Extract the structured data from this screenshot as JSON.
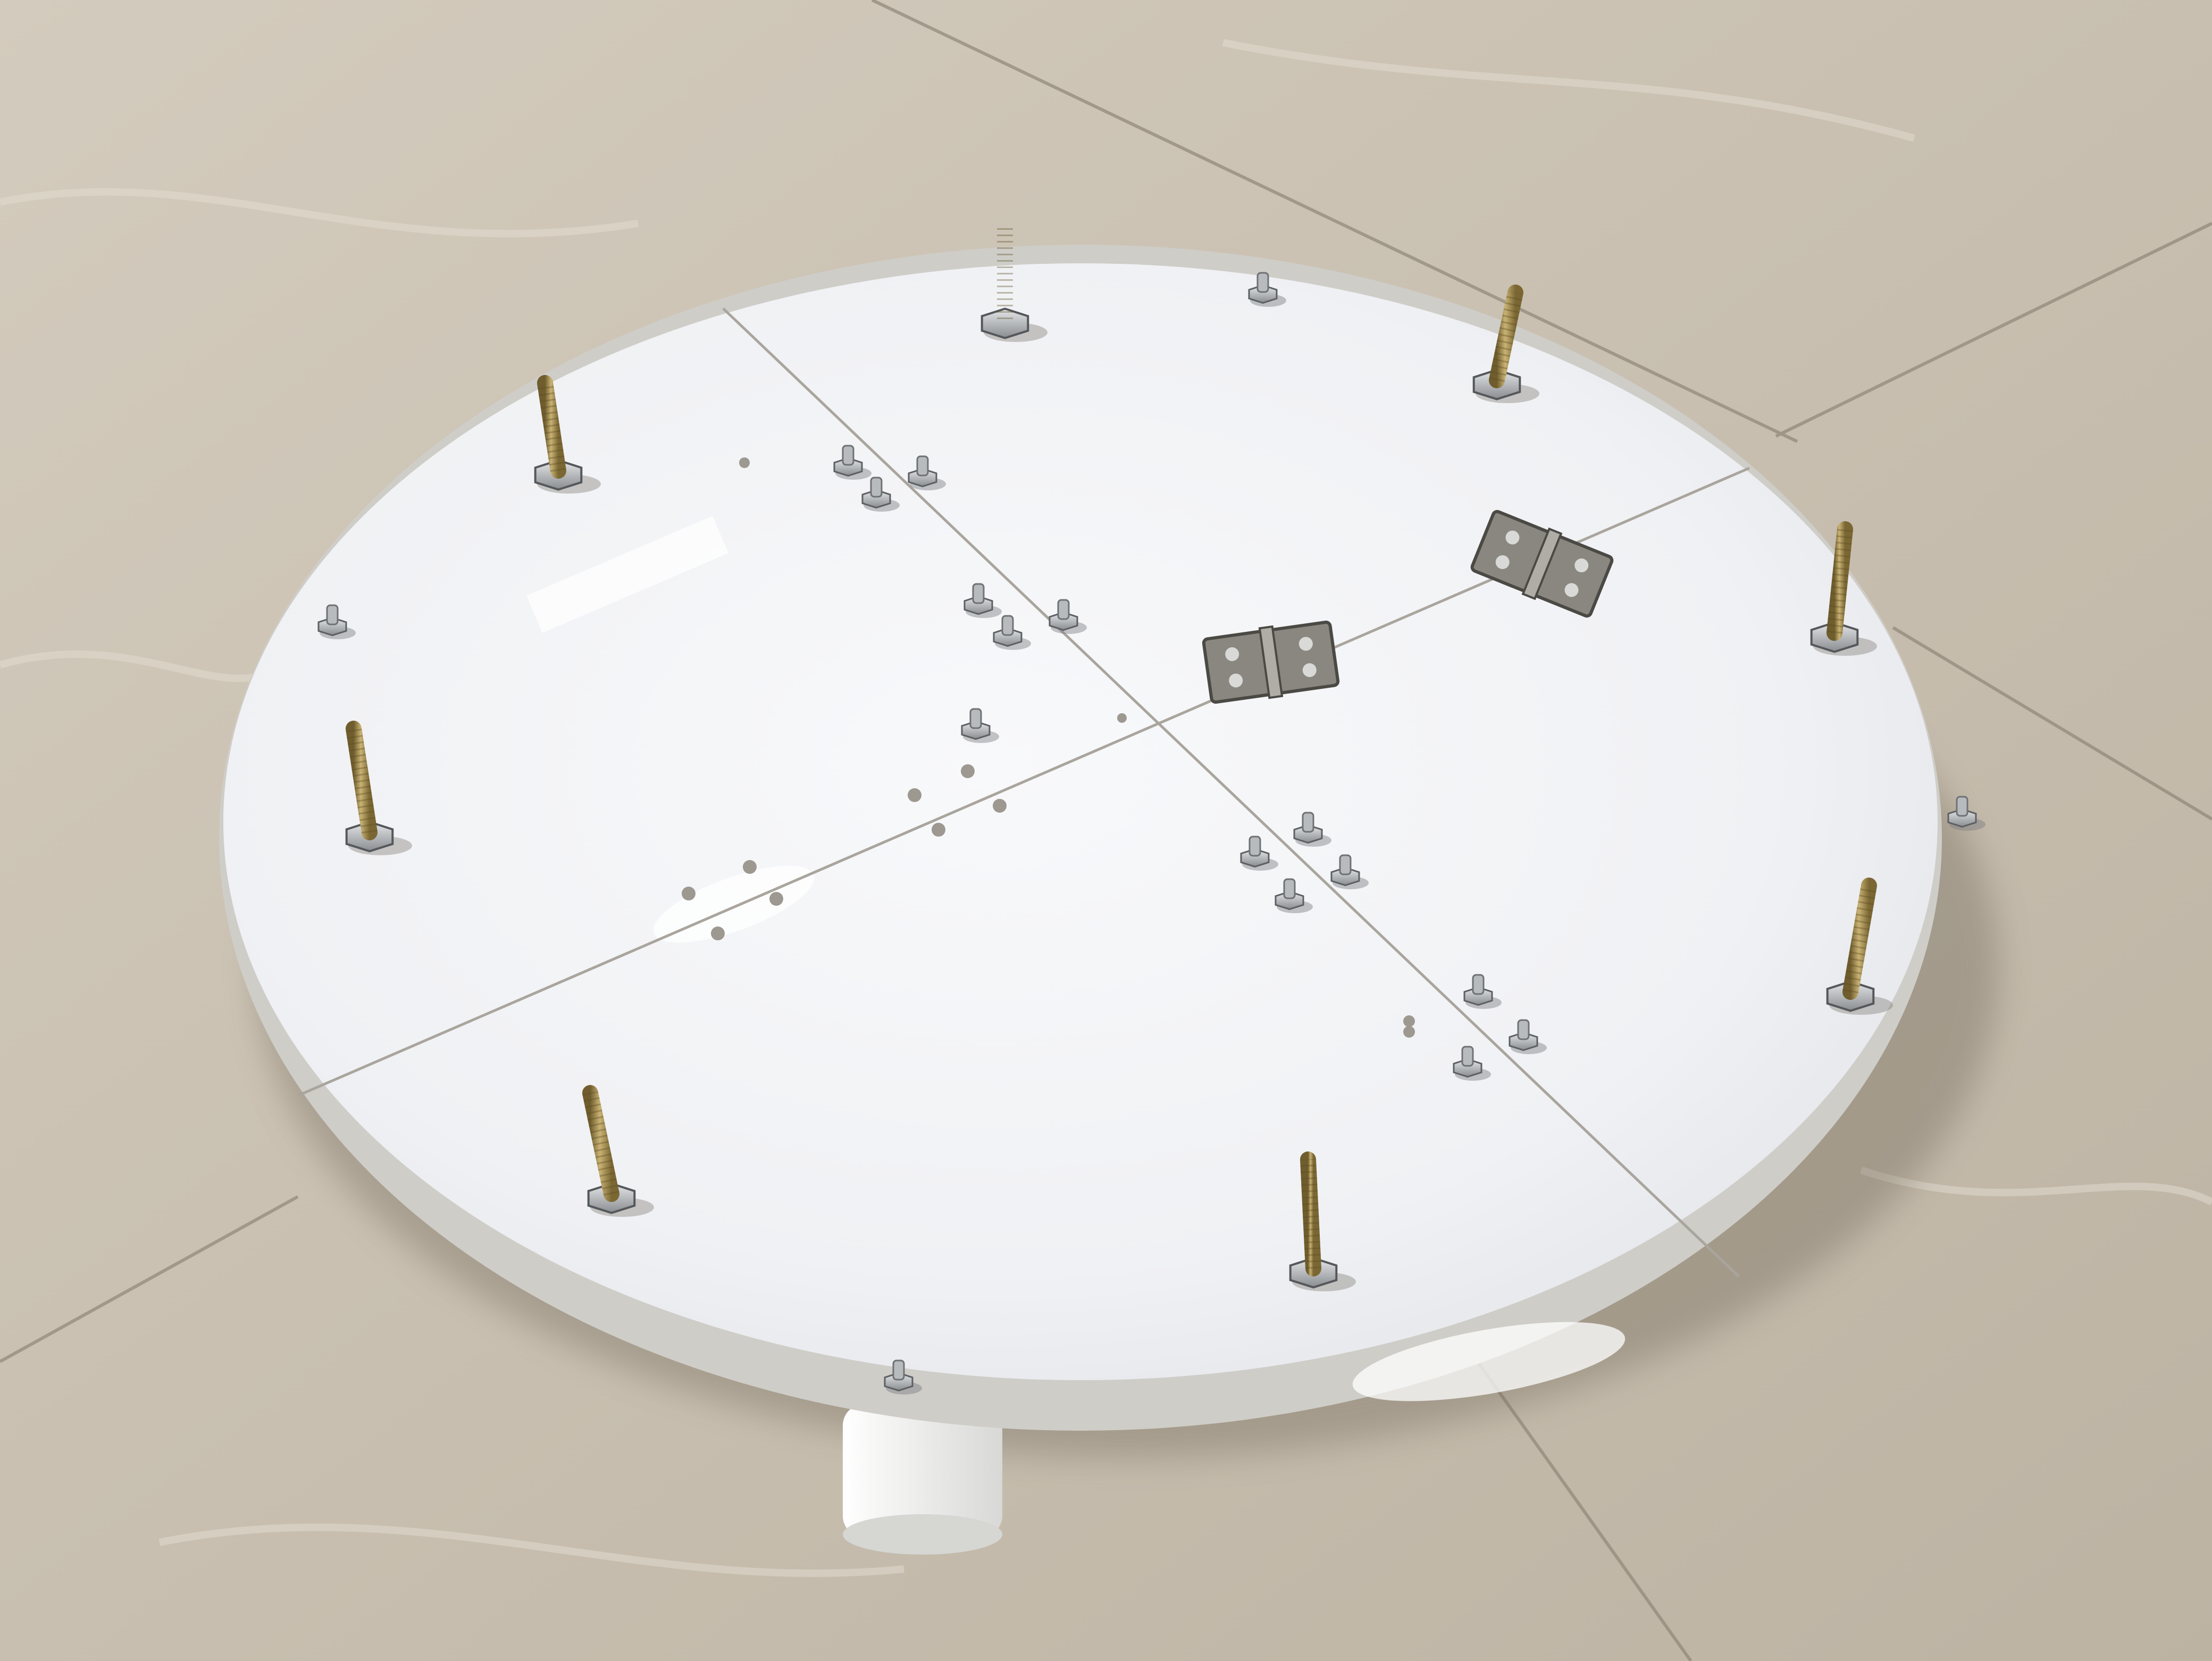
{
  "scene": {
    "subject": "",
    "colors": {
      "floor_light": "#d8d1c4",
      "floor_mid": "#c6bdae",
      "floor_dark": "#b3a998",
      "tile_seam": "#8f8677",
      "disc_top": "#f4f5f7",
      "disc_shade": "#e3e5ea",
      "disc_edge": "#cfcdc8",
      "seam": "#a9a59d",
      "hole": "#9d9890",
      "nut": "#c4c6c9",
      "nut_shadow": "#6f7275",
      "brass": "#b19a5a",
      "brass_dark": "#6f5d2d",
      "hinge": "#8a8780",
      "foot": "#f2f2f0"
    }
  }
}
